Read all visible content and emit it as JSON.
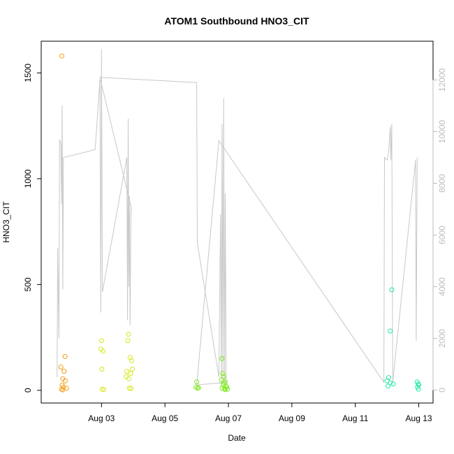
{
  "chart_data": {
    "type": "scatter",
    "title": "ATOM1 Southbound HNO3_CIT",
    "xlabel": "Date",
    "ylabel": "HNO3_CIT",
    "x_ticks": [
      "Aug 03",
      "Aug 05",
      "Aug 07",
      "Aug 09",
      "Aug 11",
      "Aug 13"
    ],
    "x_tick_days": [
      3,
      5,
      7,
      9,
      11,
      13
    ],
    "xlim_days": [
      1.1,
      13.45
    ],
    "ylim": [
      -60,
      1650
    ],
    "y_ticks": [
      0,
      500,
      1000,
      1500
    ],
    "y2lim": [
      -500,
      13500
    ],
    "y2_ticks": [
      0,
      2000,
      4000,
      6000,
      8000,
      10000,
      12000
    ],
    "grid": false,
    "line_color": "#c8c8c8",
    "point_series": [
      {
        "color": "#f39c12",
        "points": [
          [
            1.75,
            1580
          ],
          [
            1.72,
            110
          ],
          [
            1.78,
            55
          ],
          [
            1.76,
            25
          ],
          [
            1.8,
            15
          ],
          [
            1.74,
            5
          ],
          [
            1.82,
            90
          ],
          [
            1.85,
            160
          ],
          [
            1.86,
            45
          ],
          [
            1.9,
            10
          ],
          [
            1.78,
            2
          ]
        ]
      },
      {
        "color": "#d7e81c",
        "points": [
          [
            3.0,
            235
          ],
          [
            2.98,
            195
          ],
          [
            3.05,
            185
          ],
          [
            3.01,
            100
          ],
          [
            3.02,
            5
          ],
          [
            3.07,
            3
          ],
          [
            3.85,
            265
          ],
          [
            3.83,
            235
          ],
          [
            3.9,
            155
          ],
          [
            3.95,
            140
          ],
          [
            3.8,
            90
          ],
          [
            3.97,
            100
          ],
          [
            3.92,
            80
          ],
          [
            3.78,
            65
          ],
          [
            3.86,
            55
          ],
          [
            3.88,
            10
          ],
          [
            3.93,
            8
          ]
        ]
      },
      {
        "color": "#7cea1a",
        "points": [
          [
            6.0,
            40
          ],
          [
            5.98,
            15
          ],
          [
            6.03,
            10
          ],
          [
            6.06,
            12
          ],
          [
            6.8,
            150
          ],
          [
            6.82,
            80
          ],
          [
            6.85,
            65
          ],
          [
            6.78,
            50
          ],
          [
            6.9,
            40
          ],
          [
            6.86,
            35
          ],
          [
            6.84,
            25
          ],
          [
            6.92,
            20
          ],
          [
            6.95,
            15
          ],
          [
            6.8,
            10
          ],
          [
            6.88,
            8
          ],
          [
            6.97,
            5
          ],
          [
            6.9,
            3
          ]
        ]
      },
      {
        "color": "#1de8a8",
        "points": [
          [
            12.15,
            475
          ],
          [
            12.1,
            280
          ],
          [
            12.05,
            60
          ],
          [
            12.0,
            45
          ],
          [
            12.1,
            35
          ],
          [
            12.03,
            20
          ],
          [
            12.2,
            30
          ],
          [
            12.95,
            40
          ],
          [
            12.98,
            30
          ],
          [
            13.0,
            25
          ],
          [
            12.96,
            15
          ],
          [
            12.99,
            5
          ]
        ]
      }
    ],
    "secondary_line": [
      [
        1.6,
        500
      ],
      [
        1.62,
        5500
      ],
      [
        1.66,
        2000
      ],
      [
        1.68,
        9700
      ],
      [
        1.72,
        9500
      ],
      [
        1.74,
        7200
      ],
      [
        1.76,
        11000
      ],
      [
        1.78,
        3900
      ],
      [
        1.8,
        9000
      ],
      [
        2.8,
        9300
      ],
      [
        2.95,
        12000
      ],
      [
        2.98,
        3000
      ],
      [
        3.0,
        13200
      ],
      [
        3.03,
        3800
      ],
      [
        3.8,
        9000
      ],
      [
        3.82,
        2700
      ],
      [
        3.84,
        10500
      ],
      [
        3.86,
        4000
      ],
      [
        3.88,
        7500
      ],
      [
        3.9,
        2500
      ],
      [
        3.93,
        7000
      ],
      [
        3.95,
        7000
      ],
      [
        2.95,
        12100
      ],
      [
        6.0,
        11900
      ],
      [
        6.02,
        5700
      ],
      [
        6.7,
        500
      ],
      [
        6.75,
        6800
      ],
      [
        6.78,
        200
      ],
      [
        6.8,
        10300
      ],
      [
        6.83,
        300
      ],
      [
        6.85,
        11300
      ],
      [
        6.88,
        300
      ],
      [
        6.9,
        7600
      ],
      [
        6.93,
        300
      ],
      [
        6.0,
        200
      ],
      [
        6.7,
        9650
      ],
      [
        11.9,
        300
      ],
      [
        11.92,
        9000
      ],
      [
        12.0,
        8900
      ],
      [
        12.05,
        9200
      ],
      [
        12.1,
        10200
      ],
      [
        12.12,
        8900
      ],
      [
        12.15,
        10300
      ],
      [
        12.18,
        300
      ],
      [
        12.9,
        8900
      ],
      [
        12.92,
        1900
      ],
      [
        12.95,
        9000
      ]
    ]
  }
}
